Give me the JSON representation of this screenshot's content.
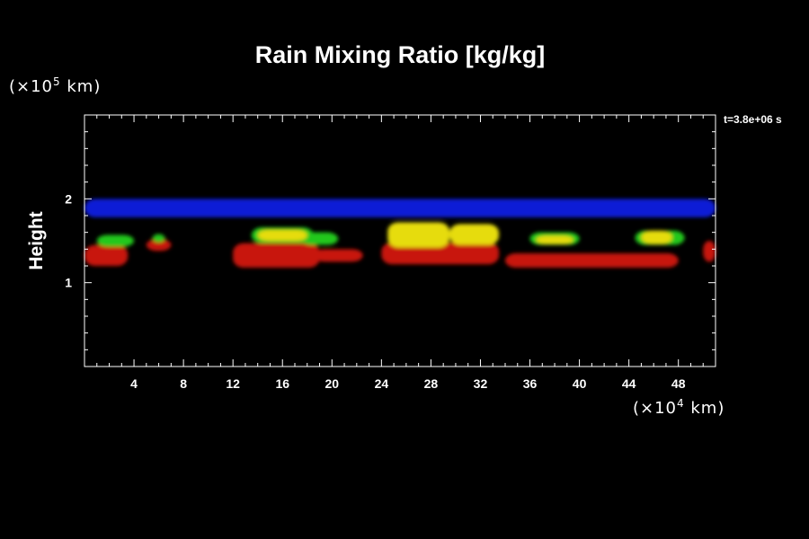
{
  "chart_data": {
    "type": "heatmap",
    "title": "Rain Mixing Ratio [kg/kg]",
    "ylabel": "Height",
    "xlabel": "",
    "y_unit": {
      "prefix": "(×10",
      "exp": "5",
      "suffix": " km)"
    },
    "x_unit": {
      "prefix": "(×10",
      "exp": "4",
      "suffix": " km)"
    },
    "time_label": "t=3.8e+06 s",
    "xlim": [
      0,
      51
    ],
    "ylim": [
      0,
      3
    ],
    "x_ticks": [
      4,
      8,
      12,
      16,
      20,
      24,
      28,
      32,
      36,
      40,
      44,
      48
    ],
    "y_ticks": [
      1,
      2
    ],
    "colors": {
      "blue": "#0a1fd6",
      "red": "#c8120c",
      "darkred": "#9b1008",
      "green": "#22c81a",
      "yellow": "#e6dc10"
    },
    "bands": [
      {
        "color": "blue",
        "regions": [
          [
            0,
            51,
            1.78,
            2.0
          ]
        ]
      },
      {
        "color": "red",
        "regions": [
          [
            0,
            3.5,
            1.2,
            1.45
          ],
          [
            5,
            7,
            1.38,
            1.52
          ],
          [
            12,
            19,
            1.18,
            1.47
          ],
          [
            18.5,
            22.5,
            1.25,
            1.4
          ],
          [
            24,
            33.5,
            1.22,
            1.48
          ],
          [
            34,
            48,
            1.18,
            1.35
          ],
          [
            50,
            51,
            1.25,
            1.5
          ]
        ]
      },
      {
        "color": "green",
        "regions": [
          [
            1,
            4,
            1.43,
            1.57
          ],
          [
            5.5,
            6.5,
            1.48,
            1.58
          ],
          [
            13.5,
            18.5,
            1.47,
            1.66
          ],
          [
            17.5,
            20.5,
            1.45,
            1.6
          ],
          [
            36,
            40,
            1.45,
            1.6
          ],
          [
            44.5,
            48.5,
            1.45,
            1.62
          ]
        ]
      },
      {
        "color": "yellow",
        "regions": [
          [
            14,
            18,
            1.5,
            1.63
          ],
          [
            24.5,
            29.5,
            1.42,
            1.72
          ],
          [
            29.5,
            33.5,
            1.45,
            1.7
          ],
          [
            36.5,
            39.5,
            1.46,
            1.56
          ],
          [
            45,
            47.5,
            1.46,
            1.62
          ]
        ]
      }
    ]
  }
}
